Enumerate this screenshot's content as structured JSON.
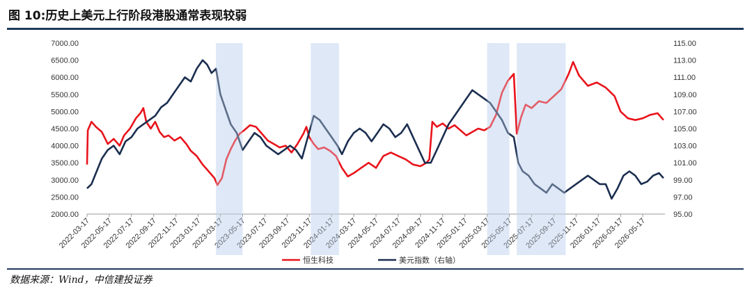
{
  "header": {
    "title": "图 10:历史上美元上行阶段港股通常表现较弱"
  },
  "footer": {
    "source": "数据来源：Wind，中信建投证券"
  },
  "chart_data": {
    "type": "line",
    "xlabel": "",
    "ylabel": "",
    "x_ticks": [
      "2022-03-17",
      "2022-05-17",
      "2022-07-17",
      "2022-09-17",
      "2022-11-17",
      "2023-01-17",
      "2023-03-17",
      "2023-05-17",
      "2023-07-17",
      "2023-09-17",
      "2023-11-17",
      "2024-01-17",
      "2024-03-17",
      "2024-05-17",
      "2024-07-17",
      "2024-09-17",
      "2024-11-17",
      "2025-01-17",
      "2025-03-17",
      "2025-05-17",
      "2025-07-17",
      "2025-09-17",
      "2025-11-17",
      "2026-01-17",
      "2026-03-17",
      "2026-05-17"
    ],
    "y_left": {
      "min": 2000,
      "max": 7000,
      "ticks": [
        "2000.00",
        "2500.00",
        "3000.00",
        "3500.00",
        "4000.00",
        "4500.00",
        "5000.00",
        "5500.00",
        "6000.00",
        "6500.00",
        "7000.00"
      ]
    },
    "y_right": {
      "min": 95,
      "max": 115,
      "ticks": [
        "95.00",
        "97.00",
        "99.00",
        "101.00",
        "103.00",
        "105.00",
        "107.00",
        "109.00",
        "111.00",
        "113.00",
        "115.00"
      ]
    },
    "shaded_periods": [
      {
        "start": 8.7,
        "end": 10.5
      },
      {
        "start": 15.1,
        "end": 17.0
      },
      {
        "start": 27.0,
        "end": 28.5
      },
      {
        "start": 29.0,
        "end": 32.3
      }
    ],
    "series": [
      {
        "name": "恒生科技",
        "axis": "left",
        "color": "#e8131b",
        "points": [
          [
            0.0,
            3450
          ],
          [
            0.05,
            4450
          ],
          [
            0.3,
            4700
          ],
          [
            0.6,
            4550
          ],
          [
            1.0,
            4400
          ],
          [
            1.4,
            4050
          ],
          [
            1.8,
            4200
          ],
          [
            2.2,
            4000
          ],
          [
            2.5,
            4300
          ],
          [
            2.9,
            4500
          ],
          [
            3.3,
            4800
          ],
          [
            3.6,
            4950
          ],
          [
            3.8,
            5100
          ],
          [
            4.0,
            4700
          ],
          [
            4.3,
            4500
          ],
          [
            4.6,
            4700
          ],
          [
            4.9,
            4400
          ],
          [
            5.2,
            4250
          ],
          [
            5.5,
            4300
          ],
          [
            5.9,
            4150
          ],
          [
            6.3,
            4250
          ],
          [
            6.7,
            4050
          ],
          [
            7.0,
            3850
          ],
          [
            7.4,
            3700
          ],
          [
            7.8,
            3450
          ],
          [
            8.1,
            3300
          ],
          [
            8.4,
            3150
          ],
          [
            8.6,
            3050
          ],
          [
            8.8,
            2850
          ],
          [
            9.1,
            3050
          ],
          [
            9.4,
            3600
          ],
          [
            9.7,
            3900
          ],
          [
            10.0,
            4150
          ],
          [
            10.3,
            4350
          ],
          [
            10.6,
            4450
          ],
          [
            11.0,
            4600
          ],
          [
            11.4,
            4550
          ],
          [
            11.8,
            4350
          ],
          [
            12.2,
            4150
          ],
          [
            12.6,
            4050
          ],
          [
            13.0,
            3950
          ],
          [
            13.4,
            4000
          ],
          [
            13.8,
            3800
          ],
          [
            14.2,
            4050
          ],
          [
            14.6,
            4350
          ],
          [
            14.8,
            4550
          ],
          [
            15.0,
            4250
          ],
          [
            15.3,
            4050
          ],
          [
            15.6,
            3900
          ],
          [
            16.0,
            3950
          ],
          [
            16.4,
            3850
          ],
          [
            16.8,
            3700
          ],
          [
            17.2,
            3350
          ],
          [
            17.6,
            3100
          ],
          [
            18.0,
            3200
          ],
          [
            18.5,
            3350
          ],
          [
            19.0,
            3500
          ],
          [
            19.5,
            3350
          ],
          [
            20.0,
            3700
          ],
          [
            20.5,
            3800
          ],
          [
            21.0,
            3700
          ],
          [
            21.5,
            3600
          ],
          [
            22.0,
            3450
          ],
          [
            22.5,
            3400
          ],
          [
            22.9,
            3500
          ],
          [
            23.1,
            3600
          ],
          [
            23.3,
            4700
          ],
          [
            23.6,
            4550
          ],
          [
            24.0,
            4650
          ],
          [
            24.4,
            4500
          ],
          [
            24.8,
            4600
          ],
          [
            25.2,
            4450
          ],
          [
            25.6,
            4300
          ],
          [
            26.0,
            4400
          ],
          [
            26.4,
            4500
          ],
          [
            26.8,
            4450
          ],
          [
            27.2,
            4550
          ],
          [
            27.6,
            4900
          ],
          [
            28.0,
            5550
          ],
          [
            28.4,
            5900
          ],
          [
            28.8,
            6100
          ],
          [
            29.0,
            4350
          ],
          [
            29.3,
            4850
          ],
          [
            29.6,
            5200
          ],
          [
            30.0,
            5100
          ],
          [
            30.5,
            5300
          ],
          [
            31.0,
            5250
          ],
          [
            31.5,
            5450
          ],
          [
            32.0,
            5650
          ],
          [
            32.5,
            6100
          ],
          [
            32.8,
            6450
          ],
          [
            33.2,
            6050
          ],
          [
            33.8,
            5750
          ],
          [
            34.4,
            5850
          ],
          [
            35.0,
            5700
          ],
          [
            35.6,
            5450
          ],
          [
            36.0,
            5000
          ],
          [
            36.5,
            4800
          ],
          [
            37.0,
            4750
          ],
          [
            37.5,
            4800
          ],
          [
            38.0,
            4900
          ],
          [
            38.5,
            4950
          ],
          [
            38.9,
            4750
          ]
        ]
      },
      {
        "name": "美元指数（右轴）",
        "axis": "right",
        "color": "#1b2e4f",
        "points": [
          [
            0.0,
            98.0
          ],
          [
            0.3,
            98.5
          ],
          [
            0.6,
            99.8
          ],
          [
            1.0,
            101.5
          ],
          [
            1.4,
            102.5
          ],
          [
            1.8,
            103.0
          ],
          [
            2.2,
            102.0
          ],
          [
            2.6,
            103.5
          ],
          [
            3.0,
            104.0
          ],
          [
            3.4,
            105.0
          ],
          [
            3.8,
            105.5
          ],
          [
            4.2,
            106.0
          ],
          [
            4.6,
            106.5
          ],
          [
            5.0,
            107.5
          ],
          [
            5.4,
            108.0
          ],
          [
            5.8,
            109.0
          ],
          [
            6.2,
            110.0
          ],
          [
            6.6,
            111.0
          ],
          [
            7.0,
            110.5
          ],
          [
            7.4,
            112.0
          ],
          [
            7.8,
            113.0
          ],
          [
            8.1,
            112.5
          ],
          [
            8.4,
            111.5
          ],
          [
            8.7,
            112.0
          ],
          [
            9.0,
            109.0
          ],
          [
            9.3,
            107.5
          ],
          [
            9.7,
            105.5
          ],
          [
            10.1,
            104.5
          ],
          [
            10.5,
            102.5
          ],
          [
            10.9,
            103.5
          ],
          [
            11.3,
            104.5
          ],
          [
            11.7,
            104.0
          ],
          [
            12.1,
            103.0
          ],
          [
            12.5,
            102.5
          ],
          [
            12.9,
            102.0
          ],
          [
            13.3,
            102.5
          ],
          [
            13.7,
            103.0
          ],
          [
            14.1,
            102.5
          ],
          [
            14.5,
            101.5
          ],
          [
            14.9,
            104.0
          ],
          [
            15.3,
            106.5
          ],
          [
            15.7,
            106.0
          ],
          [
            16.1,
            105.0
          ],
          [
            16.5,
            104.0
          ],
          [
            16.9,
            103.0
          ],
          [
            17.2,
            102.0
          ],
          [
            17.6,
            103.5
          ],
          [
            18.0,
            104.5
          ],
          [
            18.4,
            105.0
          ],
          [
            18.8,
            104.5
          ],
          [
            19.2,
            103.5
          ],
          [
            19.6,
            104.5
          ],
          [
            20.0,
            105.5
          ],
          [
            20.4,
            105.0
          ],
          [
            20.8,
            104.0
          ],
          [
            21.2,
            104.5
          ],
          [
            21.6,
            105.5
          ],
          [
            22.0,
            104.0
          ],
          [
            22.4,
            102.5
          ],
          [
            22.8,
            101.0
          ],
          [
            23.2,
            101.0
          ],
          [
            23.6,
            102.5
          ],
          [
            24.0,
            104.0
          ],
          [
            24.4,
            105.5
          ],
          [
            24.8,
            106.5
          ],
          [
            25.2,
            107.5
          ],
          [
            25.6,
            108.5
          ],
          [
            26.0,
            109.5
          ],
          [
            26.4,
            109.0
          ],
          [
            26.8,
            108.5
          ],
          [
            27.2,
            108.0
          ],
          [
            27.6,
            107.0
          ],
          [
            28.0,
            106.0
          ],
          [
            28.4,
            104.5
          ],
          [
            28.8,
            104.0
          ],
          [
            29.1,
            101.0
          ],
          [
            29.4,
            100.0
          ],
          [
            29.8,
            99.5
          ],
          [
            30.2,
            98.5
          ],
          [
            30.6,
            98.0
          ],
          [
            31.0,
            97.5
          ],
          [
            31.4,
            98.5
          ],
          [
            31.8,
            98.0
          ],
          [
            32.2,
            97.5
          ],
          [
            32.6,
            98.0
          ],
          [
            33.0,
            98.5
          ],
          [
            33.4,
            99.0
          ],
          [
            33.8,
            99.5
          ],
          [
            34.2,
            99.0
          ],
          [
            34.6,
            98.5
          ],
          [
            35.0,
            98.5
          ],
          [
            35.4,
            96.8
          ],
          [
            35.8,
            98.0
          ],
          [
            36.2,
            99.5
          ],
          [
            36.6,
            100.0
          ],
          [
            37.0,
            99.5
          ],
          [
            37.4,
            98.5
          ],
          [
            37.8,
            98.8
          ],
          [
            38.2,
            99.5
          ],
          [
            38.6,
            99.8
          ],
          [
            38.9,
            99.2
          ]
        ]
      }
    ]
  }
}
